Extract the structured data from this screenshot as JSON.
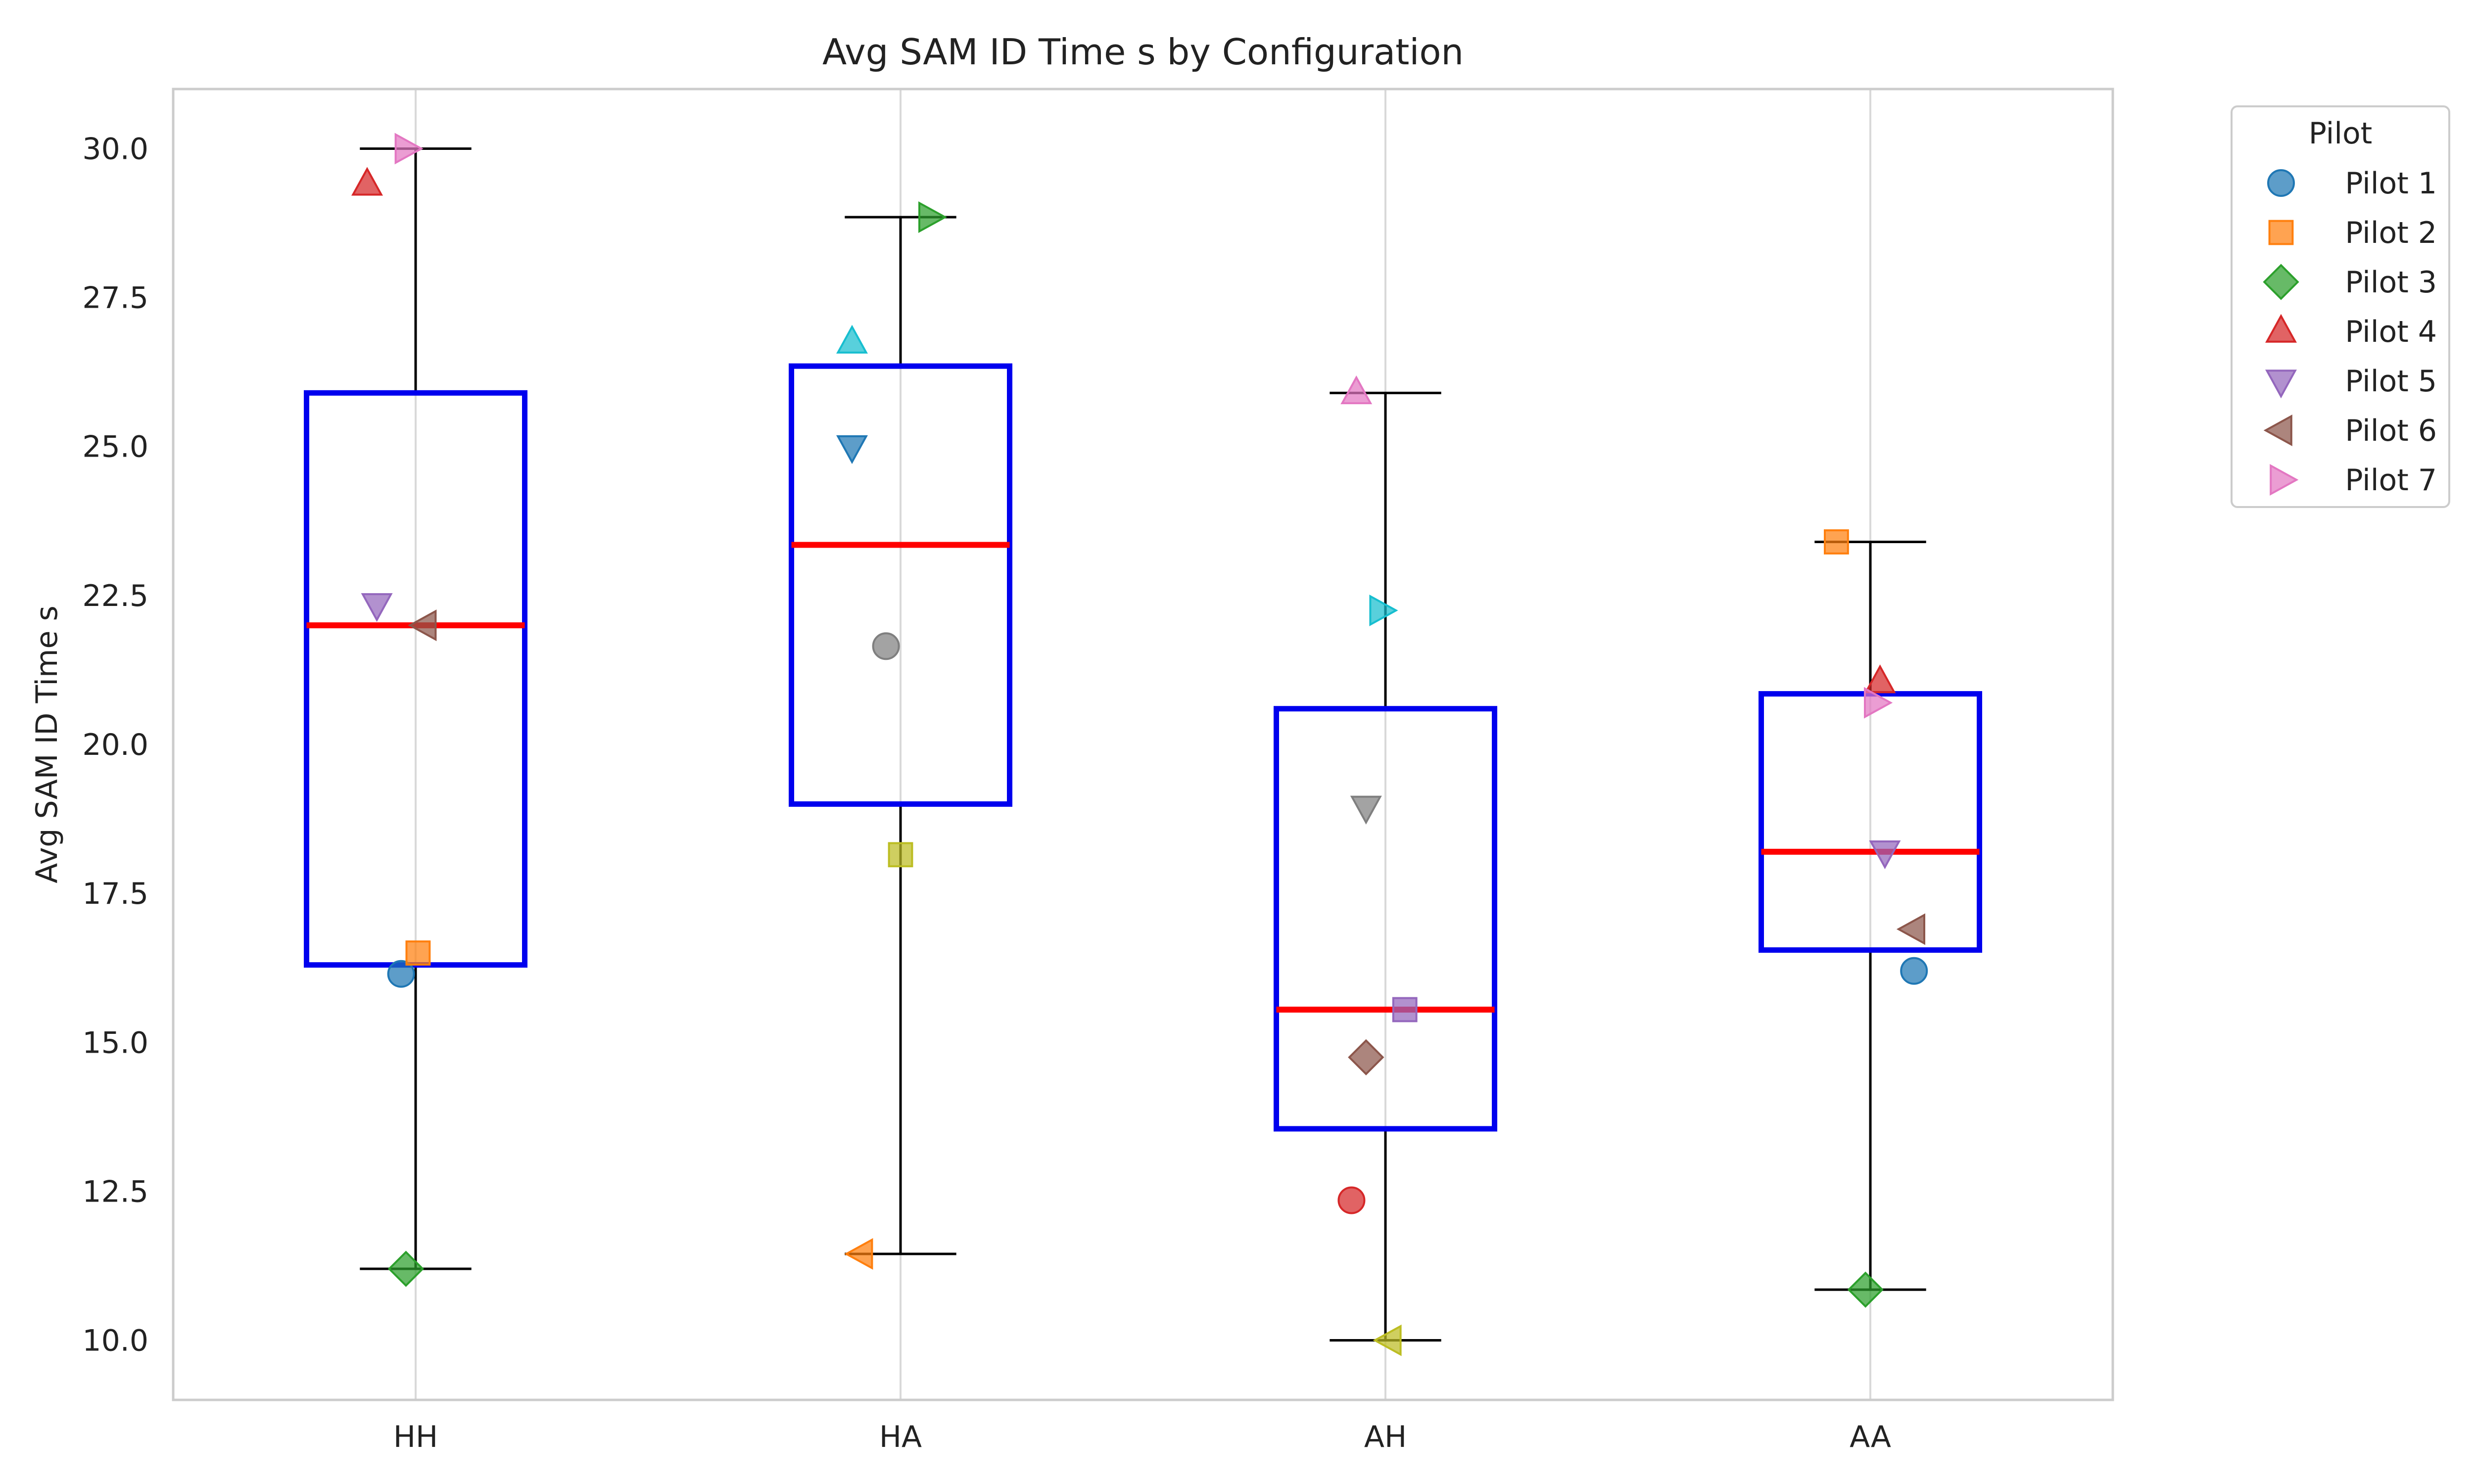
{
  "chart_data": {
    "type": "box",
    "title": "Avg SAM ID Time s by Configuration",
    "xlabel": "",
    "ylabel": "Avg SAM ID Time s",
    "categories": [
      "HH",
      "HA",
      "AH",
      "AA"
    ],
    "ylim": [
      9.0,
      31.0
    ],
    "yticks": [
      10.0,
      12.5,
      15.0,
      17.5,
      20.0,
      22.5,
      25.0,
      27.5,
      30.0
    ],
    "grid": "vertical",
    "legend_title": "Pilot",
    "legend_position": "outside upper right",
    "box_style": {
      "box_color": "#0000ee",
      "median_color": "#ff0000",
      "whisker_color": "#000000"
    },
    "boxes": [
      {
        "category": "HH",
        "whisker_low": 11.2,
        "q1": 16.3,
        "median": 22.0,
        "q3": 25.9,
        "whisker_high": 30.0
      },
      {
        "category": "HA",
        "whisker_low": 11.45,
        "q1": 19.0,
        "median": 23.35,
        "q3": 26.35,
        "whisker_high": 28.85
      },
      {
        "category": "AH",
        "whisker_low": 10.0,
        "q1": 13.55,
        "median": 15.55,
        "q3": 20.6,
        "whisker_high": 25.9
      },
      {
        "category": "AA",
        "whisker_low": 10.85,
        "q1": 16.55,
        "median": 18.2,
        "q3": 20.85,
        "whisker_high": 23.4
      }
    ],
    "legend": [
      {
        "name": "Pilot 1",
        "marker": "circle",
        "color": "#1f77b4"
      },
      {
        "name": "Pilot 2",
        "marker": "square",
        "color": "#ff7f0e"
      },
      {
        "name": "Pilot 3",
        "marker": "diamond",
        "color": "#2ca02c"
      },
      {
        "name": "Pilot 4",
        "marker": "triangle-up",
        "color": "#d62728"
      },
      {
        "name": "Pilot 5",
        "marker": "triangle-down",
        "color": "#9467bd"
      },
      {
        "name": "Pilot 6",
        "marker": "triangle-left",
        "color": "#8c564b"
      },
      {
        "name": "Pilot 7",
        "marker": "triangle-right",
        "color": "#e377c2"
      }
    ],
    "points": [
      {
        "category": "HH",
        "y": 16.15,
        "jitter": -0.03,
        "marker": "circle",
        "color": "#1f77b4"
      },
      {
        "category": "HH",
        "y": 16.5,
        "jitter": 0.005,
        "marker": "square",
        "color": "#ff7f0e"
      },
      {
        "category": "HH",
        "y": 11.2,
        "jitter": -0.02,
        "marker": "diamond",
        "color": "#2ca02c"
      },
      {
        "category": "HH",
        "y": 29.4,
        "jitter": -0.1,
        "marker": "triangle-up",
        "color": "#d62728"
      },
      {
        "category": "HH",
        "y": 22.35,
        "jitter": -0.08,
        "marker": "triangle-down",
        "color": "#9467bd"
      },
      {
        "category": "HH",
        "y": 22.0,
        "jitter": 0.02,
        "marker": "triangle-left",
        "color": "#8c564b"
      },
      {
        "category": "HH",
        "y": 30.0,
        "jitter": -0.02,
        "marker": "triangle-right",
        "color": "#e377c2"
      },
      {
        "category": "HA",
        "y": 21.65,
        "jitter": -0.03,
        "marker": "circle",
        "color": "#7f7f7f"
      },
      {
        "category": "HA",
        "y": 18.15,
        "jitter": 0.0,
        "marker": "square",
        "color": "#bcbd22"
      },
      {
        "category": "HA",
        "y": 26.75,
        "jitter": -0.1,
        "marker": "triangle-up",
        "color": "#17becf"
      },
      {
        "category": "HA",
        "y": 25.0,
        "jitter": -0.1,
        "marker": "triangle-down",
        "color": "#1f77b4"
      },
      {
        "category": "HA",
        "y": 11.45,
        "jitter": -0.08,
        "marker": "triangle-left",
        "color": "#ff7f0e"
      },
      {
        "category": "HA",
        "y": 28.85,
        "jitter": 0.06,
        "marker": "triangle-right",
        "color": "#2ca02c"
      },
      {
        "category": "AH",
        "y": 12.35,
        "jitter": -0.07,
        "marker": "circle",
        "color": "#d62728"
      },
      {
        "category": "AH",
        "y": 15.55,
        "jitter": 0.04,
        "marker": "square",
        "color": "#9467bd"
      },
      {
        "category": "AH",
        "y": 14.75,
        "jitter": -0.04,
        "marker": "diamond",
        "color": "#8c564b"
      },
      {
        "category": "AH",
        "y": 25.9,
        "jitter": -0.06,
        "marker": "triangle-up",
        "color": "#e377c2"
      },
      {
        "category": "AH",
        "y": 18.95,
        "jitter": -0.04,
        "marker": "triangle-down",
        "color": "#7f7f7f"
      },
      {
        "category": "AH",
        "y": 10.0,
        "jitter": 0.01,
        "marker": "triangle-left",
        "color": "#bcbd22"
      },
      {
        "category": "AH",
        "y": 22.25,
        "jitter": -0.01,
        "marker": "triangle-right",
        "color": "#17becf"
      },
      {
        "category": "AA",
        "y": 16.2,
        "jitter": 0.09,
        "marker": "circle",
        "color": "#1f77b4"
      },
      {
        "category": "AA",
        "y": 23.4,
        "jitter": -0.07,
        "marker": "square",
        "color": "#ff7f0e"
      },
      {
        "category": "AA",
        "y": 10.85,
        "jitter": -0.01,
        "marker": "diamond",
        "color": "#2ca02c"
      },
      {
        "category": "AA",
        "y": 21.05,
        "jitter": 0.02,
        "marker": "triangle-up",
        "color": "#d62728"
      },
      {
        "category": "AA",
        "y": 18.2,
        "jitter": 0.03,
        "marker": "triangle-down",
        "color": "#9467bd"
      },
      {
        "category": "AA",
        "y": 16.9,
        "jitter": 0.09,
        "marker": "triangle-left",
        "color": "#8c564b"
      },
      {
        "category": "AA",
        "y": 20.7,
        "jitter": 0.01,
        "marker": "triangle-right",
        "color": "#e377c2"
      }
    ]
  }
}
